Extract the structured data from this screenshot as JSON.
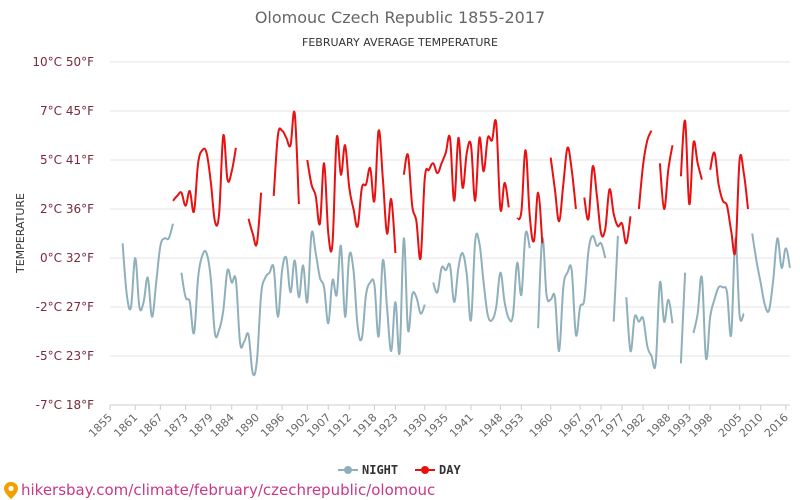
{
  "chart_data": {
    "type": "line",
    "title": "Olomouc Czech Republic 1855-2017",
    "subtitle": "FEBRUARY AVERAGE TEMPERATURE",
    "ylabel": "TEMPERATURE",
    "ylim": [
      -7,
      10
    ],
    "y_ticks": [
      {
        "value": 10,
        "label": "10°C 50°F"
      },
      {
        "value": 7,
        "label": "7°C 45°F"
      },
      {
        "value": 5,
        "label": "5°C 41°F"
      },
      {
        "value": 2,
        "label": "2°C 36°F"
      },
      {
        "value": 0,
        "label": "0°C 32°F"
      },
      {
        "value": -2,
        "label": "-2°C 27°F"
      },
      {
        "value": -5,
        "label": "-5°C 23°F"
      },
      {
        "value": -7,
        "label": "-7°C 18°F"
      }
    ],
    "xlim": [
      1855,
      2017
    ],
    "x_ticks": [
      1855,
      1861,
      1867,
      1873,
      1879,
      1884,
      1890,
      1896,
      1902,
      1907,
      1912,
      1918,
      1923,
      1930,
      1935,
      1941,
      1948,
      1953,
      1960,
      1967,
      1972,
      1977,
      1982,
      1988,
      1993,
      1998,
      2005,
      2010,
      2016
    ],
    "grid": true,
    "legend_position": "bottom",
    "series": [
      {
        "name": "NIGHT",
        "color": "#8fb0bb",
        "points": [
          [
            1858,
            0.6
          ],
          [
            1859,
            -1.5
          ],
          [
            1860,
            -2
          ],
          [
            1861,
            0
          ],
          [
            1862,
            -2
          ],
          [
            1863,
            -1.8
          ],
          [
            1864,
            -0.8
          ],
          [
            1865,
            -2.6
          ],
          [
            1866,
            -1
          ],
          [
            1867,
            0.5
          ],
          [
            1868,
            0.8
          ],
          [
            1869,
            0.8
          ],
          [
            1870,
            1.4
          ],
          null,
          [
            1872,
            -0.6
          ],
          [
            1873,
            -1.6
          ],
          [
            1874,
            -1.8
          ],
          [
            1875,
            -3.6
          ],
          [
            1876,
            -0.8
          ],
          [
            1877,
            0.1
          ],
          [
            1878,
            0.2
          ],
          [
            1879,
            -0.8
          ],
          [
            1880,
            -3.6
          ],
          [
            1881,
            -3.4
          ],
          [
            1882,
            -2.2
          ],
          [
            1883,
            -0.5
          ],
          [
            1884,
            -1
          ],
          [
            1885,
            -0.9
          ],
          [
            1886,
            -4.2
          ],
          [
            1887,
            -4.1
          ],
          [
            1888,
            -3.7
          ],
          [
            1889,
            -5.7
          ],
          [
            1890,
            -5.2
          ],
          [
            1891,
            -1.5
          ],
          [
            1892,
            -0.8
          ],
          [
            1893,
            -0.6
          ],
          [
            1894,
            -0.4
          ],
          [
            1895,
            -2.6
          ],
          [
            1896,
            -0.5
          ],
          [
            1897,
            0
          ],
          [
            1898,
            -1.4
          ],
          [
            1899,
            -0.1
          ],
          [
            1900,
            -1.6
          ],
          [
            1901,
            -0.3
          ],
          [
            1902,
            -1.8
          ],
          [
            1903,
            1
          ],
          [
            1904,
            0.2
          ],
          [
            1905,
            -0.8
          ],
          [
            1906,
            -1.2
          ],
          [
            1907,
            -3
          ],
          [
            1908,
            -0.9
          ],
          [
            1909,
            -1.5
          ],
          [
            1910,
            0.5
          ],
          [
            1911,
            -2.6
          ],
          [
            1912,
            0.1
          ],
          [
            1913,
            -0.5
          ],
          [
            1914,
            -3.2
          ],
          [
            1915,
            -3.9
          ],
          [
            1916,
            -1.5
          ],
          [
            1917,
            -1
          ],
          [
            1918,
            -1.1
          ],
          [
            1919,
            -3.8
          ],
          [
            1920,
            -0.1
          ],
          [
            1921,
            -2
          ],
          [
            1922,
            -4.7
          ],
          [
            1923,
            -1.8
          ],
          [
            1924,
            -4.8
          ],
          [
            1925,
            0.8
          ],
          [
            1926,
            -3.4
          ],
          [
            1927,
            -1.5
          ],
          [
            1928,
            -1.6
          ],
          [
            1929,
            -2.4
          ],
          [
            1930,
            -1.9
          ],
          null,
          [
            1932,
            -1
          ],
          [
            1933,
            -1.4
          ],
          [
            1934,
            -0.4
          ],
          [
            1935,
            -0.5
          ],
          [
            1936,
            -0.3
          ],
          [
            1937,
            -1.8
          ],
          [
            1938,
            -0.4
          ],
          [
            1939,
            0.2
          ],
          [
            1940,
            -0.7
          ],
          [
            1941,
            -2.8
          ],
          [
            1942,
            0.7
          ],
          [
            1943,
            0.6
          ],
          [
            1944,
            -1
          ],
          [
            1945,
            -2.5
          ],
          [
            1946,
            -2.8
          ],
          [
            1947,
            -2
          ],
          [
            1948,
            -0.6
          ],
          [
            1949,
            -1.8
          ],
          [
            1950,
            -2.7
          ],
          [
            1951,
            -2.5
          ],
          [
            1952,
            -0.2
          ],
          [
            1953,
            -1.5
          ],
          [
            1954,
            1
          ],
          [
            1955,
            0.4
          ],
          null,
          [
            1957,
            -3.3
          ],
          [
            1958,
            0.8
          ],
          [
            1959,
            -1.5
          ],
          [
            1960,
            -1.7
          ],
          [
            1961,
            -1.6
          ],
          [
            1962,
            -4.7
          ],
          [
            1963,
            -1.2
          ],
          [
            1964,
            -0.6
          ],
          [
            1965,
            -0.5
          ],
          [
            1966,
            -3.7
          ],
          [
            1967,
            -2
          ],
          [
            1968,
            -1.7
          ],
          [
            1969,
            0.3
          ],
          [
            1970,
            0.9
          ],
          [
            1971,
            0.5
          ],
          [
            1972,
            0.6
          ],
          [
            1973,
            0
          ],
          null,
          [
            1975,
            -2.9
          ],
          [
            1976,
            0.9
          ],
          null,
          [
            1978,
            -1.6
          ],
          [
            1979,
            -4.7
          ],
          [
            1980,
            -2.6
          ],
          [
            1981,
            -2.9
          ],
          [
            1982,
            -2.7
          ],
          [
            1983,
            -4.4
          ],
          [
            1984,
            -5
          ],
          [
            1985,
            -5.3
          ],
          [
            1986,
            -1
          ],
          [
            1987,
            -2.9
          ],
          [
            1988,
            -1.7
          ],
          [
            1989,
            -3
          ],
          null,
          [
            1991,
            -5.3
          ],
          [
            1992,
            -0.6
          ],
          null,
          [
            1994,
            -3.6
          ],
          [
            1995,
            -2.4
          ],
          [
            1996,
            -0.8
          ],
          [
            1997,
            -5.1
          ],
          [
            1998,
            -2.6
          ],
          [
            1999,
            -1.7
          ],
          [
            2000,
            -1.2
          ],
          [
            2001,
            -1.2
          ],
          [
            2002,
            -1.4
          ],
          [
            2003,
            -3.7
          ],
          [
            2004,
            0.8
          ],
          [
            2005,
            -2.5
          ],
          [
            2006,
            -2.4
          ],
          null,
          [
            2008,
            1
          ],
          [
            2009,
            -0.1
          ],
          [
            2010,
            -1
          ],
          [
            2011,
            -1.9
          ],
          [
            2012,
            -2.2
          ],
          [
            2013,
            -0.9
          ],
          [
            2014,
            0.8
          ],
          [
            2015,
            -0.4
          ],
          [
            2016,
            0.4
          ],
          [
            2017,
            -0.4
          ]
        ]
      },
      {
        "name": "DAY",
        "color": "#e81010",
        "points": [
          [
            1870,
            2.5
          ],
          [
            1871,
            2.8
          ],
          [
            1872,
            3
          ],
          [
            1873,
            2.2
          ],
          [
            1874,
            3.1
          ],
          [
            1875,
            1.9
          ],
          [
            1876,
            4.8
          ],
          [
            1877,
            5.4
          ],
          [
            1878,
            5.3
          ],
          [
            1879,
            3.7
          ],
          [
            1880,
            1.5
          ],
          [
            1881,
            1.8
          ],
          [
            1882,
            6
          ],
          [
            1883,
            3.8
          ],
          [
            1884,
            4.3
          ],
          [
            1885,
            5.5
          ],
          null,
          [
            1888,
            1.6
          ],
          [
            1889,
            1
          ],
          [
            1890,
            0.6
          ],
          [
            1891,
            3
          ],
          null,
          [
            1894,
            2.8
          ],
          [
            1895,
            6
          ],
          [
            1896,
            6.2
          ],
          [
            1897,
            5.9
          ],
          [
            1898,
            5.6
          ],
          [
            1899,
            6.9
          ],
          [
            1900,
            2.3
          ],
          null,
          [
            1902,
            5
          ],
          [
            1903,
            3.5
          ],
          [
            1904,
            2.8
          ],
          [
            1905,
            1.4
          ],
          [
            1906,
            4.8
          ],
          [
            1907,
            1
          ],
          [
            1908,
            0.6
          ],
          [
            1909,
            5.9
          ],
          [
            1910,
            4.1
          ],
          [
            1911,
            5.6
          ],
          [
            1912,
            3.3
          ],
          [
            1913,
            2
          ],
          [
            1914,
            1.3
          ],
          [
            1915,
            3.3
          ],
          [
            1916,
            3.5
          ],
          [
            1917,
            4.5
          ],
          [
            1918,
            2.5
          ],
          [
            1919,
            6.2
          ],
          [
            1920,
            3.9
          ],
          [
            1921,
            1
          ],
          [
            1922,
            2.6
          ],
          [
            1923,
            0.2
          ],
          null,
          [
            1925,
            4.1
          ],
          [
            1926,
            5.2
          ],
          [
            1927,
            2.2
          ],
          [
            1928,
            1.5
          ],
          [
            1929,
            0
          ],
          [
            1930,
            3.9
          ],
          [
            1931,
            4.4
          ],
          [
            1932,
            4.8
          ],
          [
            1933,
            4.2
          ],
          [
            1934,
            4.8
          ],
          [
            1935,
            5.3
          ],
          [
            1936,
            5.9
          ],
          [
            1937,
            2.5
          ],
          [
            1938,
            5.9
          ],
          [
            1939,
            3.3
          ],
          [
            1940,
            5.3
          ],
          [
            1941,
            5.6
          ],
          [
            1942,
            2.5
          ],
          [
            1943,
            5.9
          ],
          [
            1944,
            4.3
          ],
          [
            1945,
            5.9
          ],
          [
            1946,
            5.8
          ],
          [
            1947,
            6.5
          ],
          [
            1948,
            2
          ],
          [
            1949,
            3.6
          ],
          [
            1950,
            2.1
          ],
          null,
          [
            1952,
            1.6
          ],
          [
            1953,
            1.9
          ],
          [
            1954,
            5.4
          ],
          [
            1955,
            1.7
          ],
          [
            1956,
            0.7
          ],
          [
            1957,
            3
          ],
          [
            1958,
            0.6
          ],
          null,
          [
            1960,
            5.1
          ],
          [
            1961,
            3.2
          ],
          [
            1962,
            1.5
          ],
          [
            1963,
            3.5
          ],
          [
            1964,
            5.5
          ],
          [
            1965,
            4.4
          ],
          [
            1966,
            2
          ],
          null,
          [
            1968,
            2.7
          ],
          [
            1969,
            1.6
          ],
          [
            1970,
            4.6
          ],
          [
            1971,
            2.8
          ],
          [
            1972,
            1
          ],
          [
            1973,
            1.2
          ],
          [
            1974,
            3.2
          ],
          [
            1975,
            1.8
          ],
          [
            1976,
            1.3
          ],
          [
            1977,
            1.4
          ],
          [
            1978,
            0.6
          ],
          [
            1979,
            1.7
          ],
          null,
          [
            1981,
            2
          ],
          [
            1982,
            4.7
          ],
          [
            1983,
            5.8
          ],
          [
            1984,
            6.2
          ],
          null,
          [
            1986,
            4.8
          ],
          [
            1987,
            2
          ],
          [
            1988,
            4.4
          ],
          [
            1989,
            5.6
          ],
          null,
          [
            1991,
            4
          ],
          [
            1992,
            6.6
          ],
          [
            1993,
            2.3
          ],
          [
            1994,
            5.7
          ],
          [
            1995,
            4.8
          ],
          [
            1996,
            3.8
          ],
          null,
          [
            1998,
            4.4
          ],
          [
            1999,
            5.3
          ],
          [
            2000,
            3.5
          ],
          [
            2001,
            2.5
          ],
          [
            2002,
            2.2
          ],
          [
            2003,
            1.1
          ],
          [
            2004,
            0.3
          ],
          [
            2005,
            5
          ],
          [
            2006,
            4.2
          ],
          [
            2007,
            2
          ]
        ]
      }
    ]
  },
  "watermark": {
    "icon": "location-pin-icon",
    "text": "hikersbay.com/climate/february/czechrepublic/olomouc"
  }
}
